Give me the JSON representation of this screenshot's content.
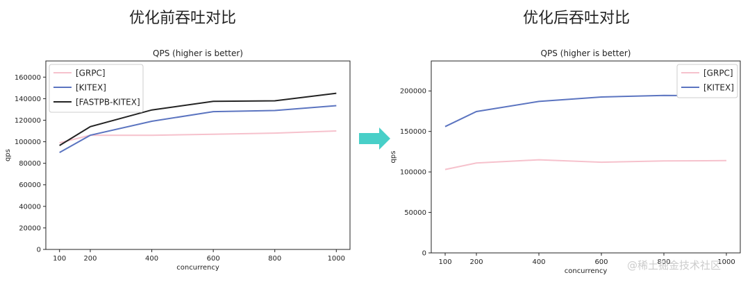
{
  "headings": {
    "left": "优化前吞吐对比",
    "right": "优化后吞吐对比"
  },
  "watermark": "@稀土掘金技术社区",
  "arrow_color": "#48cfc8",
  "chart_data": [
    {
      "type": "line",
      "title": "QPS (higher is better)",
      "xlabel": "concurrency",
      "ylabel": "qps",
      "x": [
        100,
        200,
        400,
        600,
        800,
        1000
      ],
      "ylim": [
        0,
        175000
      ],
      "yticks": [
        0,
        20000,
        40000,
        60000,
        80000,
        100000,
        120000,
        140000,
        160000
      ],
      "legend_position": "top-left",
      "grid": false,
      "series": [
        {
          "name": "[GRPC]",
          "color": "#f6c1cc",
          "values": [
            99000,
            106000,
            106000,
            107000,
            108000,
            110000
          ]
        },
        {
          "name": "[KITEX]",
          "color": "#5b74c0",
          "values": [
            90000,
            106000,
            119000,
            128000,
            129000,
            133500
          ]
        },
        {
          "name": "[FASTPB-KITEX]",
          "color": "#222222",
          "values": [
            96500,
            114000,
            129500,
            137500,
            138000,
            145000
          ]
        }
      ]
    },
    {
      "type": "line",
      "title": "QPS (higher is better)",
      "xlabel": "concurrency",
      "ylabel": "qps",
      "x": [
        100,
        200,
        400,
        600,
        800,
        1000
      ],
      "ylim": [
        0,
        237000
      ],
      "yticks": [
        0,
        50000,
        100000,
        150000,
        200000
      ],
      "legend_position": "top-right",
      "grid": false,
      "series": [
        {
          "name": "[GRPC]",
          "color": "#f6c1cc",
          "values": [
            103000,
            111000,
            115000,
            112000,
            113500,
            114000
          ]
        },
        {
          "name": "[KITEX]",
          "color": "#5b74c0",
          "values": [
            156000,
            174500,
            187000,
            192500,
            194500,
            194000
          ]
        }
      ]
    }
  ]
}
